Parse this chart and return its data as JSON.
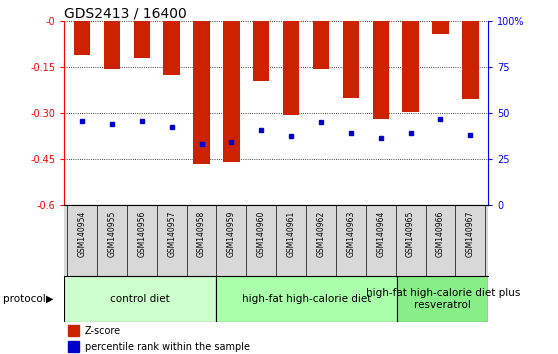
{
  "title": "GDS2413 / 16400",
  "samples": [
    "GSM140954",
    "GSM140955",
    "GSM140956",
    "GSM140957",
    "GSM140958",
    "GSM140959",
    "GSM140960",
    "GSM140961",
    "GSM140962",
    "GSM140963",
    "GSM140964",
    "GSM140965",
    "GSM140966",
    "GSM140967"
  ],
  "zscore": [
    -0.11,
    -0.155,
    -0.12,
    -0.175,
    -0.465,
    -0.46,
    -0.195,
    -0.305,
    -0.155,
    -0.25,
    -0.32,
    -0.295,
    -0.04,
    -0.255
  ],
  "percentile": [
    -0.325,
    -0.335,
    -0.325,
    -0.345,
    -0.4,
    -0.395,
    -0.355,
    -0.375,
    -0.33,
    -0.365,
    -0.38,
    -0.365,
    -0.32,
    -0.37
  ],
  "bar_color": "#cc2200",
  "dot_color": "#0000cc",
  "ylim_left": [
    -0.6,
    0.0
  ],
  "yticks_left": [
    0.0,
    -0.15,
    -0.3,
    -0.45,
    -0.6
  ],
  "ytick_labels_left": [
    "-0",
    "-0.15",
    "-0.30",
    "-0.45",
    "-0.6"
  ],
  "ylim_right": [
    0,
    100
  ],
  "yticks_right": [
    0,
    25,
    50,
    75,
    100
  ],
  "ytick_labels_right": [
    "0",
    "25",
    "50",
    "75",
    "100%"
  ],
  "groups": [
    {
      "label": "control diet",
      "start": 0,
      "end": 5,
      "color": "#ccffcc"
    },
    {
      "label": "high-fat high-calorie diet",
      "start": 5,
      "end": 11,
      "color": "#aaffaa"
    },
    {
      "label": "high-fat high-calorie diet plus\nresveratrol",
      "start": 11,
      "end": 14,
      "color": "#88ee88"
    }
  ],
  "protocol_label": "protocol",
  "legend_zscore": "Z-score",
  "legend_pct": "percentile rank within the sample",
  "background_color": "#ffffff",
  "title_fontsize": 10,
  "tick_fontsize": 7,
  "sample_fontsize": 5.5,
  "group_label_fontsize": 7.5,
  "legend_fontsize": 7
}
